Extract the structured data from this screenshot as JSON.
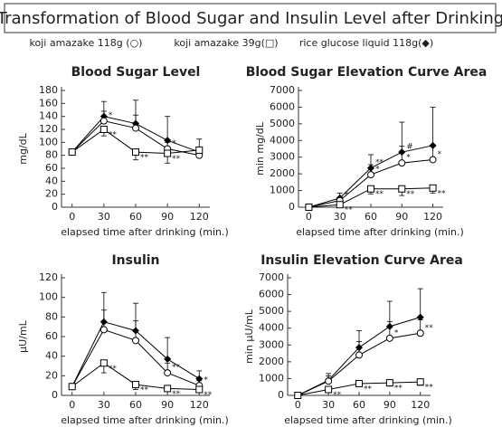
{
  "title": "Transformation of Blood Sugar and Insulin Level after Drinking",
  "legend": [
    "koji amazake 118g (○)",
    "koji amazake 39g(□)",
    "rice glucose liquid 118g(◆)"
  ],
  "chart_data": [
    {
      "type": "line",
      "title": "Blood Sugar Level",
      "y_label": "mg/dL",
      "x_label": "elapsed time after drinking (min.)",
      "x": [
        0,
        30,
        60,
        90,
        120
      ],
      "xlim": [
        -10,
        130
      ],
      "xticks": [
        0,
        30,
        60,
        90,
        120
      ],
      "ylim": [
        0,
        180
      ],
      "yticks": [
        0,
        20,
        40,
        60,
        80,
        100,
        120,
        140,
        160,
        180
      ],
      "series": [
        {
          "marker": "diamond",
          "color": "#000000",
          "error_direction": "up",
          "values": [
            85,
            140,
            129,
            103,
            85
          ],
          "errors": [
            0,
            23,
            36,
            37,
            20
          ],
          "significance": [
            null,
            null,
            null,
            null,
            null
          ]
        },
        {
          "marker": "circle",
          "color": "#000000",
          "error_direction": "up",
          "values": [
            85,
            133,
            122,
            90,
            80
          ],
          "errors": [
            4,
            15,
            20,
            10,
            10
          ],
          "significance": [
            null,
            "*",
            null,
            "*",
            null
          ]
        },
        {
          "marker": "square",
          "color": "#000000",
          "error_direction": "down",
          "values": [
            85,
            120,
            85,
            83,
            88
          ],
          "errors": [
            4,
            10,
            12,
            15,
            10
          ],
          "significance": [
            null,
            "**",
            "**",
            "**",
            null
          ]
        }
      ]
    },
    {
      "type": "line",
      "title": "Blood Sugar Elevation Curve Area",
      "y_label": "min mg/dL",
      "x_label": "elapsed time after drinking (min.)",
      "x": [
        0,
        30,
        60,
        90,
        120
      ],
      "xlim": [
        -10,
        130
      ],
      "xticks": [
        0,
        30,
        60,
        90,
        120
      ],
      "ylim": [
        0,
        7000
      ],
      "yticks": [
        0,
        1000,
        2000,
        3000,
        4000,
        5000,
        6000,
        7000
      ],
      "series": [
        {
          "marker": "diamond",
          "color": "#000000",
          "error_direction": "up",
          "values": [
            0,
            550,
            2350,
            3300,
            3700
          ],
          "errors": [
            0,
            300,
            800,
            1800,
            2300
          ],
          "significance": [
            null,
            null,
            "**",
            "#",
            null
          ]
        },
        {
          "marker": "circle",
          "color": "#000000",
          "error_direction": "up",
          "values": [
            0,
            400,
            1950,
            2650,
            2850
          ],
          "errors": [
            0,
            200,
            600,
            1000,
            800
          ],
          "significance": [
            null,
            "*",
            "*",
            "*",
            "*"
          ]
        },
        {
          "marker": "square",
          "color": "#000000",
          "error_direction": "down",
          "values": [
            0,
            150,
            1100,
            1100,
            1150
          ],
          "errors": [
            0,
            100,
            300,
            400,
            300
          ],
          "significance": [
            null,
            "**",
            "**",
            "**",
            "**"
          ]
        }
      ]
    },
    {
      "type": "line",
      "title": "Insulin",
      "y_label": "μU/mL",
      "x_label": "elapsed time after drinking (min.)",
      "x": [
        0,
        30,
        60,
        90,
        120
      ],
      "xlim": [
        -10,
        130
      ],
      "xticks": [
        0,
        30,
        60,
        90,
        120
      ],
      "ylim": [
        0,
        120
      ],
      "yticks": [
        0,
        20,
        40,
        60,
        80,
        100,
        120
      ],
      "series": [
        {
          "marker": "diamond",
          "color": "#000000",
          "error_direction": "up",
          "values": [
            9,
            75,
            66,
            37,
            17
          ],
          "errors": [
            0,
            30,
            28,
            22,
            8
          ],
          "significance": [
            null,
            null,
            null,
            null,
            null
          ]
        },
        {
          "marker": "circle",
          "color": "#000000",
          "error_direction": "up",
          "values": [
            9,
            67,
            56,
            23,
            10
          ],
          "errors": [
            2,
            20,
            20,
            10,
            5
          ],
          "significance": [
            null,
            null,
            null,
            "**",
            "*"
          ]
        },
        {
          "marker": "square",
          "color": "#000000",
          "error_direction": "down",
          "values": [
            9,
            33,
            11,
            7,
            6
          ],
          "errors": [
            2,
            10,
            5,
            3,
            2
          ],
          "significance": [
            null,
            "**",
            "**",
            "**",
            "**"
          ]
        }
      ]
    },
    {
      "type": "line",
      "title": "Insulin Elevation Curve Area",
      "y_label": "min μU/mL",
      "x_label": "elapsed time after drinking (min.)",
      "x": [
        0,
        30,
        60,
        90,
        120
      ],
      "xlim": [
        -10,
        130
      ],
      "xticks": [
        0,
        30,
        60,
        90,
        120
      ],
      "ylim": [
        0,
        7000
      ],
      "yticks": [
        0,
        1000,
        2000,
        3000,
        4000,
        5000,
        6000,
        7000
      ],
      "series": [
        {
          "marker": "diamond",
          "color": "#000000",
          "error_direction": "up",
          "values": [
            0,
            900,
            2850,
            4100,
            4650
          ],
          "errors": [
            0,
            400,
            1000,
            1500,
            1700
          ],
          "significance": [
            null,
            null,
            null,
            null,
            null
          ]
        },
        {
          "marker": "circle",
          "color": "#000000",
          "error_direction": "up",
          "values": [
            0,
            850,
            2400,
            3400,
            3700
          ],
          "errors": [
            0,
            300,
            800,
            1000,
            800
          ],
          "significance": [
            null,
            null,
            null,
            "*",
            "**"
          ]
        },
        {
          "marker": "square",
          "color": "#000000",
          "error_direction": "down",
          "values": [
            0,
            350,
            700,
            750,
            800
          ],
          "errors": [
            0,
            100,
            150,
            200,
            200
          ],
          "significance": [
            null,
            "**",
            "**",
            "**",
            "**"
          ]
        }
      ]
    }
  ]
}
